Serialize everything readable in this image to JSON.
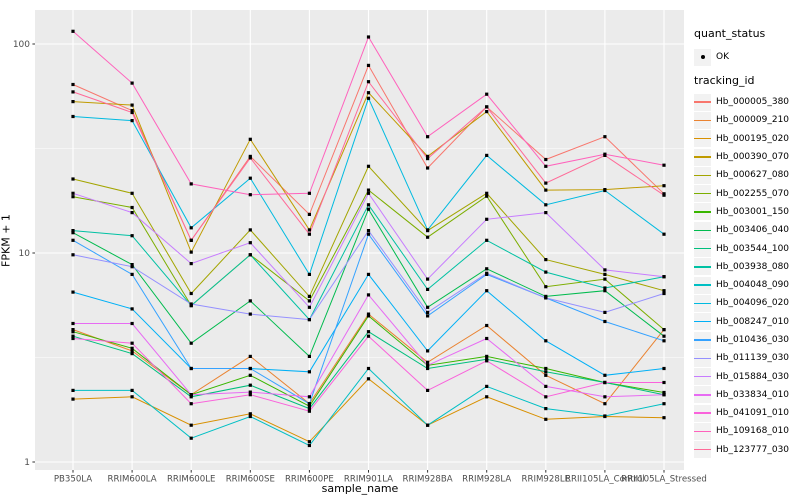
{
  "figure": {
    "background": "#FFFFFF",
    "panel_background": "#EBEBEB",
    "gridline_color": "#FFFFFF",
    "tick_color": "#333333",
    "tick_label_color": "#4D4D4D",
    "point_color": "#000000",
    "legend_key_background": "#F2F2F2"
  },
  "legend": {
    "quant_status": {
      "title": "quant_status",
      "items": [
        {
          "label": "OK",
          "marker": "point"
        }
      ]
    },
    "tracking_id": {
      "title": "tracking_id"
    }
  },
  "chart_data": {
    "type": "line",
    "title": "",
    "xlabel": "sample_name",
    "ylabel": "FPKM + 1",
    "y_scale": "log10",
    "grid": true,
    "legend_position": "right",
    "y_ticks": [
      1,
      10,
      100
    ],
    "y_minor_ticks": [
      3.162,
      31.623
    ],
    "ylim": [
      1.15,
      130
    ],
    "categories": [
      "PB350LA",
      "RRIM600LA",
      "RRIM600LE",
      "RRIM600SE",
      "RRIM600PE",
      "RRIM901LA",
      "RRIM928BA",
      "RRIM928LA",
      "RRIM928LE",
      "RRII105LA_Control",
      "RRII105LA_Stressed"
    ],
    "series": [
      {
        "name": "Hb_000005_380",
        "color": "#F8766D",
        "values": [
          64,
          48,
          11.5,
          29,
          15.3,
          79,
          25.5,
          50,
          28,
          36,
          19.2
        ]
      },
      {
        "name": "Hb_000009_210",
        "color": "#EA8331",
        "values": [
          4.3,
          3.4,
          2.1,
          3.2,
          1.9,
          5.1,
          3.0,
          4.5,
          2.6,
          1.9,
          4.3
        ]
      },
      {
        "name": "Hb_000195_020",
        "color": "#D89000",
        "values": [
          2.0,
          2.05,
          1.5,
          1.7,
          1.25,
          2.5,
          1.5,
          2.05,
          1.6,
          1.65,
          1.63
        ]
      },
      {
        "name": "Hb_000390_070",
        "color": "#C09B00",
        "values": [
          53,
          51,
          10.1,
          35,
          12.9,
          58.5,
          29,
          47.5,
          20,
          20.1,
          21
        ]
      },
      {
        "name": "Hb_000627_080",
        "color": "#A3A500",
        "values": [
          22.6,
          19.3,
          6.4,
          12.9,
          6.2,
          26,
          12.8,
          19.3,
          9.3,
          7.9,
          6.6
        ]
      },
      {
        "name": "Hb_002255_070",
        "color": "#7CAE00",
        "values": [
          18.6,
          16.5,
          5.6,
          9.8,
          5.9,
          20,
          11.9,
          18.7,
          6.9,
          7.5,
          4.3
        ]
      },
      {
        "name": "Hb_003001_150",
        "color": "#39B600",
        "values": [
          4.2,
          3.5,
          2.1,
          2.6,
          1.85,
          5.0,
          2.9,
          3.2,
          2.8,
          2.4,
          2.15
        ]
      },
      {
        "name": "Hb_003406_040",
        "color": "#00BB4E",
        "values": [
          12.5,
          8.8,
          3.7,
          5.9,
          3.2,
          16.2,
          5.5,
          8.4,
          6.2,
          6.6,
          4.0
        ]
      },
      {
        "name": "Hb_003544_100",
        "color": "#00BF7D",
        "values": [
          4.0,
          3.3,
          2.05,
          2.33,
          1.8,
          4.2,
          2.8,
          3.1,
          2.7,
          2.4,
          2.1
        ]
      },
      {
        "name": "Hb_003938_080",
        "color": "#00C1A3",
        "values": [
          12.8,
          12.1,
          5.6,
          9.8,
          4.8,
          17,
          6.7,
          11.5,
          8.1,
          6.8,
          7.7
        ]
      },
      {
        "name": "Hb_004048_090",
        "color": "#00BFC4",
        "values": [
          2.2,
          2.2,
          1.3,
          1.65,
          1.2,
          2.8,
          1.5,
          2.3,
          1.8,
          1.66,
          1.9
        ]
      },
      {
        "name": "Hb_004096_020",
        "color": "#00BAE0",
        "values": [
          45,
          43,
          13.2,
          22.8,
          7.9,
          55,
          12.9,
          29.3,
          17,
          19.9,
          12.3
        ]
      },
      {
        "name": "Hb_008247_010",
        "color": "#00B0F6",
        "values": [
          6.5,
          5.4,
          2.8,
          2.8,
          2.7,
          7.9,
          3.4,
          6.6,
          3.8,
          2.6,
          2.8
        ]
      },
      {
        "name": "Hb_010436_030",
        "color": "#35A2FF",
        "values": [
          11.5,
          7.9,
          2.8,
          2.8,
          1.9,
          12.3,
          5.0,
          7.9,
          6.1,
          4.7,
          3.8
        ]
      },
      {
        "name": "Hb_011139_030",
        "color": "#9590FF",
        "values": [
          9.8,
          8.6,
          5.7,
          5.1,
          4.8,
          12.8,
          5.2,
          8.0,
          6.1,
          5.2,
          6.4
        ]
      },
      {
        "name": "Hb_015884_030",
        "color": "#C77CFF",
        "values": [
          19.3,
          15.6,
          8.9,
          11.2,
          5.5,
          19.3,
          7.5,
          14.5,
          15.6,
          8.3,
          7.7
        ]
      },
      {
        "name": "Hb_033834_010",
        "color": "#E76BF3",
        "values": [
          4.6,
          4.6,
          2.1,
          2.16,
          2.05,
          6.3,
          2.9,
          3.9,
          2.3,
          2.05,
          2.1
        ]
      },
      {
        "name": "Hb_041091_010",
        "color": "#FA62DB",
        "values": [
          3.9,
          3.7,
          1.9,
          2.1,
          1.75,
          4.0,
          2.2,
          3.05,
          2.05,
          2.4,
          2.4
        ]
      },
      {
        "name": "Hb_109168_010",
        "color": "#FF62BC",
        "values": [
          115,
          65,
          21.4,
          19,
          19.3,
          108,
          36,
          57.5,
          26,
          29.7,
          26.3
        ]
      },
      {
        "name": "Hb_123777_030",
        "color": "#FF6A98",
        "values": [
          59,
          47,
          11.5,
          28.5,
          12.3,
          66,
          28.3,
          50,
          21.6,
          29.3,
          18.9
        ]
      }
    ]
  }
}
